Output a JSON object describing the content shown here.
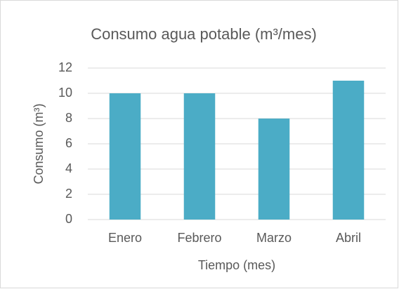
{
  "chart_data": {
    "type": "bar",
    "title": "Consumo agua potable (m³/mes)",
    "x_label": "Tiempo (mes)",
    "y_label": "Consumo (m³)",
    "categories": [
      "Enero",
      "Febrero",
      "Marzo",
      "Abril"
    ],
    "values": [
      10,
      10,
      8,
      11
    ],
    "color": "#4bacc6",
    "ylim": [
      0,
      12
    ],
    "yticks": [
      0,
      2,
      4,
      6,
      8,
      10,
      12
    ],
    "grid": true
  }
}
